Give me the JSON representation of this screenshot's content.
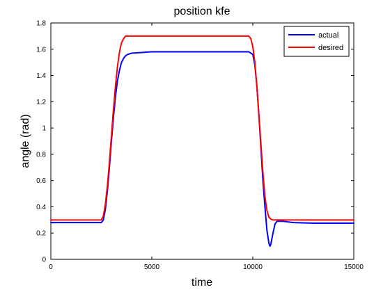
{
  "chart_data": {
    "type": "line",
    "title": "position kfe",
    "xlabel": "time",
    "ylabel": "angle (rad)",
    "xlim": [
      0,
      15000
    ],
    "ylim": [
      0,
      1.8
    ],
    "xticks": [
      0,
      5000,
      10000,
      15000
    ],
    "yticks": [
      0,
      0.2,
      0.4,
      0.6,
      0.8,
      1,
      1.2,
      1.4,
      1.6,
      1.8
    ],
    "xtick_labels": [
      "0",
      "5000",
      "10000",
      "15000"
    ],
    "ytick_labels": [
      "0",
      "0.2",
      "0.4",
      "0.6",
      "0.8",
      "1",
      "1.2",
      "1.4",
      "1.6",
      "1.8"
    ],
    "grid": false,
    "legend": "top-right",
    "series": [
      {
        "name": "actual",
        "color": "#0000ff",
        "x": [
          0,
          2500,
          2600,
          2700,
          2800,
          2900,
          3000,
          3100,
          3200,
          3300,
          3400,
          3500,
          3600,
          3700,
          3800,
          4000,
          4500,
          5000,
          6000,
          8000,
          9800,
          10000,
          10100,
          10200,
          10300,
          10400,
          10500,
          10600,
          10700,
          10800,
          10850,
          10900,
          11000,
          11100,
          11200,
          11500,
          12000,
          13000,
          15000
        ],
        "y": [
          0.28,
          0.28,
          0.3,
          0.38,
          0.52,
          0.7,
          0.9,
          1.08,
          1.24,
          1.36,
          1.44,
          1.5,
          1.53,
          1.55,
          1.56,
          1.57,
          1.575,
          1.58,
          1.58,
          1.58,
          1.58,
          1.56,
          1.48,
          1.32,
          1.1,
          0.85,
          0.6,
          0.4,
          0.22,
          0.12,
          0.1,
          0.12,
          0.2,
          0.27,
          0.29,
          0.29,
          0.28,
          0.275,
          0.275
        ]
      },
      {
        "name": "desired",
        "color": "#ff0000",
        "x": [
          0,
          2500,
          2600,
          2700,
          2800,
          2900,
          3000,
          3100,
          3200,
          3300,
          3400,
          3500,
          3600,
          3700,
          3800,
          4000,
          5000,
          8000,
          9800,
          9900,
          10000,
          10100,
          10200,
          10300,
          10400,
          10500,
          10600,
          10700,
          10800,
          10900,
          11000,
          11200,
          12000,
          15000
        ],
        "y": [
          0.3,
          0.3,
          0.33,
          0.42,
          0.56,
          0.74,
          0.94,
          1.14,
          1.32,
          1.47,
          1.58,
          1.65,
          1.68,
          1.7,
          1.7,
          1.7,
          1.7,
          1.7,
          1.7,
          1.68,
          1.62,
          1.5,
          1.32,
          1.1,
          0.88,
          0.66,
          0.48,
          0.37,
          0.32,
          0.305,
          0.3,
          0.3,
          0.3,
          0.3
        ]
      }
    ]
  }
}
